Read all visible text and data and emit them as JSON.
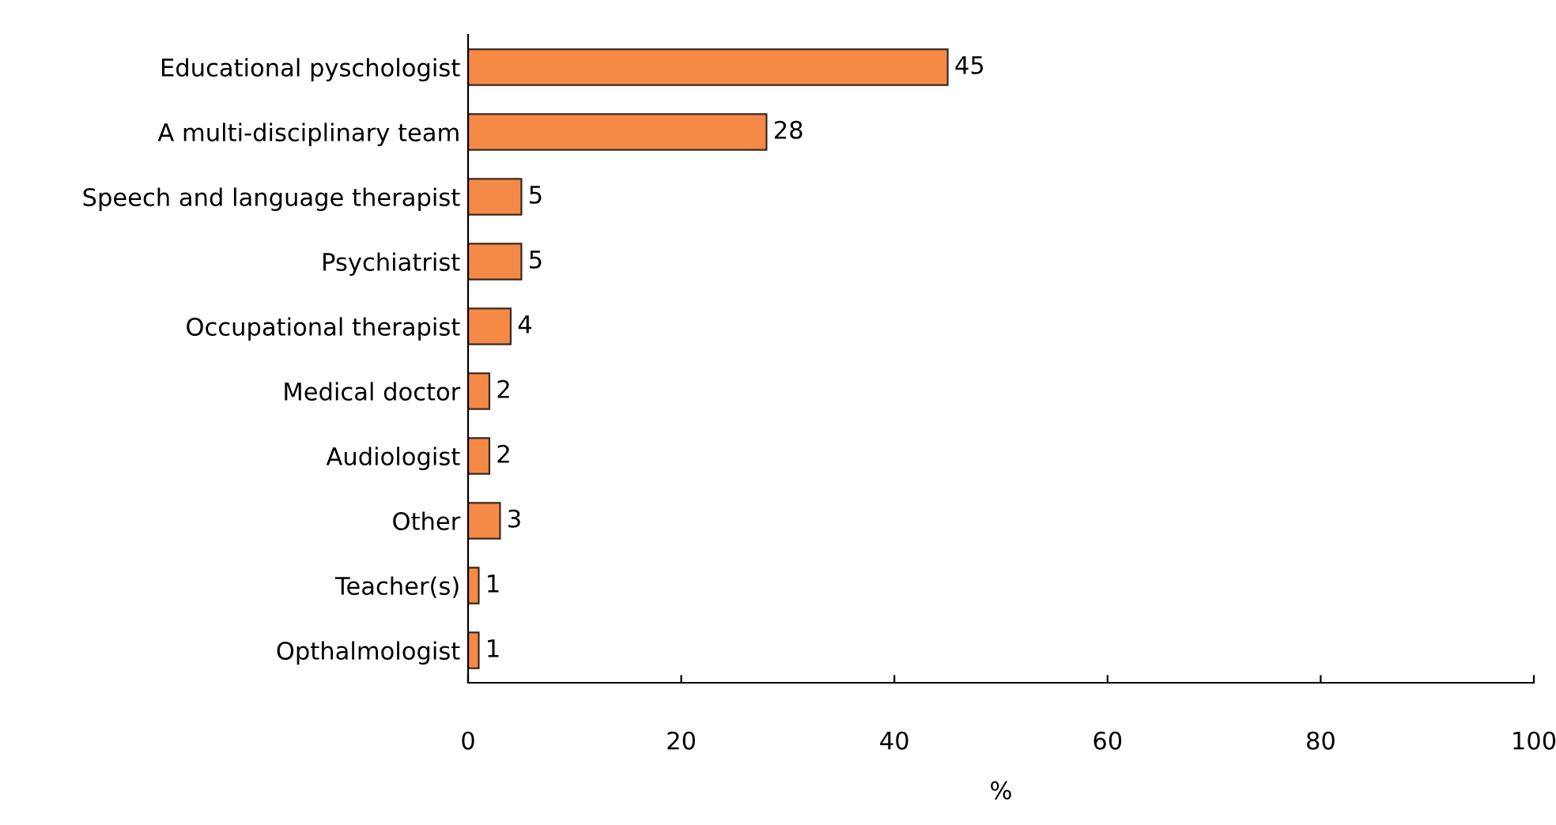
{
  "chart_data": {
    "type": "bar",
    "orientation": "horizontal",
    "xlabel": "%",
    "categories": [
      "Educational pyschologist",
      "A multi-disciplinary team",
      "Speech and language therapist",
      "Psychiatrist",
      "Occupational therapist",
      "Medical doctor",
      "Audiologist",
      "Other",
      "Teacher(s)",
      "Opthalmologist"
    ],
    "values": [
      45,
      28,
      5,
      5,
      4,
      2,
      2,
      3,
      1,
      1
    ],
    "color": "#f58a47",
    "xlim": [
      0,
      100
    ],
    "xticks": [
      0,
      20,
      40,
      60,
      80,
      100
    ],
    "grid": false,
    "data_labels": true
  }
}
